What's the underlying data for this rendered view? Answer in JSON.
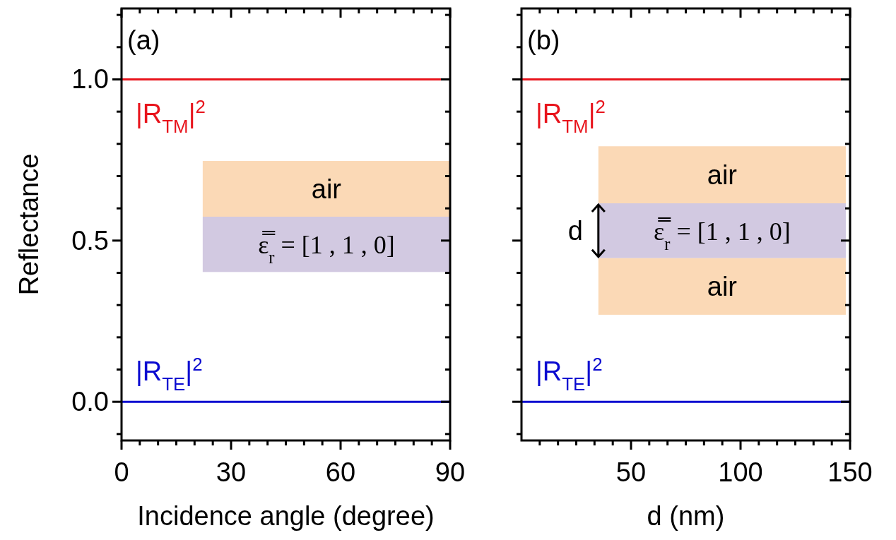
{
  "chart_data": [
    {
      "type": "line",
      "title": "(a)",
      "xlabel": "Incidence angle (degree)",
      "ylabel": "Reflectance",
      "x": [
        0,
        90
      ],
      "series": [
        {
          "name": "|R$_{TM}$|$^{2}$",
          "color": "#e8141c",
          "values": [
            1,
            1
          ]
        },
        {
          "name": "|R$_{TE}$|$^{2}$",
          "color": "#0a0ad0",
          "values": [
            0,
            0
          ]
        }
      ],
      "xlim": [
        0,
        90
      ],
      "xticks": [
        0,
        {
          "value": 5,
          "label": null
        },
        {
          "value": 10,
          "label": null
        },
        {
          "value": 15,
          "label": null
        },
        {
          "value": 20,
          "label": null
        },
        {
          "value": 25,
          "label": null
        },
        30,
        {
          "value": 35,
          "label": null
        },
        {
          "value": 40,
          "label": null
        },
        {
          "value": 45,
          "label": null
        },
        {
          "value": 50,
          "label": null
        },
        {
          "value": 55,
          "label": null
        },
        60,
        {
          "value": 65,
          "label": null
        },
        {
          "value": 70,
          "label": null
        },
        {
          "value": 75,
          "label": null
        },
        {
          "value": 80,
          "label": null
        },
        {
          "value": 85,
          "label": null
        },
        90
      ],
      "ylim": [
        -0.12,
        1.22
      ],
      "yticks": [
        {
          "value": -0.1,
          "label": null
        },
        {
          "value": 0,
          "label": "0.0"
        },
        {
          "value": 0.1,
          "label": null
        },
        {
          "value": 0.2,
          "label": null
        },
        {
          "value": 0.3,
          "label": null
        },
        {
          "value": 0.4,
          "label": null
        },
        {
          "value": 0.5,
          "label": "0.5"
        },
        {
          "value": 0.6,
          "label": null
        },
        {
          "value": 0.7,
          "label": null
        },
        {
          "value": 0.8,
          "label": null
        },
        {
          "value": 0.9,
          "label": null
        },
        {
          "value": 1,
          "label": "1.0"
        },
        {
          "value": 1.1,
          "label": null
        },
        {
          "value": 1.2,
          "label": null
        }
      ],
      "marker": "none",
      "line_style": "solid",
      "annotations": [
        "air",
        "ε̿$_{r}$ = [1 , 1 , 0]"
      ]
    },
    {
      "type": "line",
      "title": "(b)",
      "xlabel": "d (nm)",
      "x": [
        0,
        150
      ],
      "series": [
        {
          "name": "|R$_{TM}$|$^{2}$",
          "color": "#e8141c",
          "values": [
            1,
            1
          ]
        },
        {
          "name": "|R$_{TE}$|$^{2}$",
          "color": "#0a0ad0",
          "values": [
            0,
            0
          ]
        }
      ],
      "xlim": [
        0,
        150
      ],
      "xticks": [
        {
          "value": 8.33,
          "label": null
        },
        {
          "value": 16.67,
          "label": null
        },
        {
          "value": 25,
          "label": null
        },
        {
          "value": 33.33,
          "label": null
        },
        {
          "value": 41.67,
          "label": null
        },
        50,
        {
          "value": 58.33,
          "label": null
        },
        {
          "value": 66.67,
          "label": null
        },
        {
          "value": 75,
          "label": null
        },
        {
          "value": 83.33,
          "label": null
        },
        {
          "value": 91.67,
          "label": null
        },
        100,
        {
          "value": 108.33,
          "label": null
        },
        {
          "value": 116.67,
          "label": null
        },
        {
          "value": 125,
          "label": null
        },
        {
          "value": 133.33,
          "label": null
        },
        {
          "value": 141.67,
          "label": null
        },
        150
      ],
      "ylim": [
        -0.12,
        1.22
      ],
      "yticks": [
        {
          "value": -0.1,
          "label": null
        },
        {
          "value": 0,
          "label": null
        },
        {
          "value": 0.1,
          "label": null
        },
        {
          "value": 0.2,
          "label": null
        },
        {
          "value": 0.3,
          "label": null
        },
        {
          "value": 0.4,
          "label": null
        },
        {
          "value": 0.5,
          "label": null
        },
        {
          "value": 0.6,
          "label": null
        },
        {
          "value": 0.7,
          "label": null
        },
        {
          "value": 0.8,
          "label": null
        },
        {
          "value": 0.9,
          "label": null
        },
        {
          "value": 1,
          "label": null
        },
        {
          "value": 1.1,
          "label": null
        },
        {
          "value": 1.2,
          "label": null
        }
      ],
      "tick_labels": "x",
      "marker": "none",
      "line_style": "solid",
      "annotations": [
        "air",
        "ε̿$_{r}$ = [1 , 1 , 0]",
        "air",
        "d"
      ]
    }
  ]
}
